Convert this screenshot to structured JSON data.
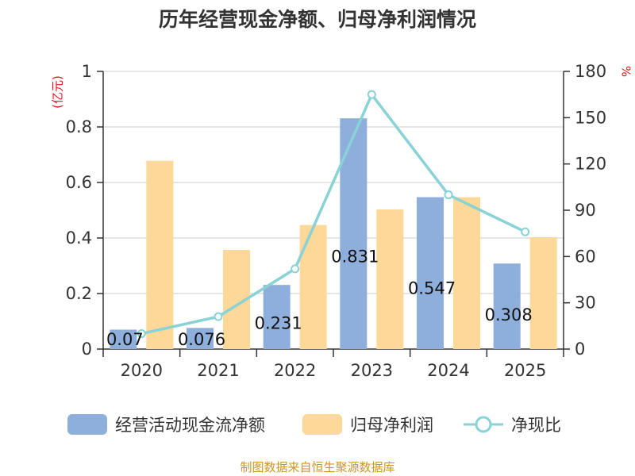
{
  "chart_data": {
    "type": "bar",
    "title": "历年经营现金净额、归母净利润情况",
    "categories": [
      "2020",
      "2021",
      "2022",
      "2023",
      "2024",
      "2025"
    ],
    "series": [
      {
        "name": "经营活动现金流净额",
        "type": "bar",
        "axis": "left",
        "color": "#8eaedc",
        "values": [
          0.07,
          0.076,
          0.231,
          0.831,
          0.547,
          0.308
        ],
        "labels": [
          "0.07",
          "0.076",
          "0.231",
          "0.831",
          "0.547",
          "0.308"
        ]
      },
      {
        "name": "归母净利润",
        "type": "bar",
        "axis": "left",
        "color": "#fed899",
        "values": [
          0.678,
          0.357,
          0.447,
          0.503,
          0.547,
          0.403
        ]
      },
      {
        "name": "净现比",
        "type": "line",
        "axis": "right",
        "color": "#89d2d6",
        "values": [
          10,
          21,
          52,
          165,
          100,
          76
        ]
      }
    ],
    "y_left": {
      "label": "(亿元)",
      "ylim": [
        0,
        1
      ],
      "ticks": [
        "0",
        "0.2",
        "0.4",
        "0.6",
        "0.8",
        "1"
      ],
      "tick_values": [
        0,
        0.2,
        0.4,
        0.6,
        0.8,
        1
      ]
    },
    "y_right": {
      "label": "%",
      "ylim": [
        0,
        180
      ],
      "ticks": [
        "0",
        "30",
        "60",
        "90",
        "120",
        "150",
        "180"
      ],
      "tick_values": [
        0,
        30,
        60,
        90,
        120,
        150,
        180
      ]
    },
    "legend": {
      "position": "bottom",
      "items": [
        "经营活动现金流净额",
        "归母净利润",
        "净现比"
      ]
    },
    "grid": true
  },
  "source_text": "制图数据来自恒生聚源数据库",
  "colors": {
    "axis": "#333333",
    "grid": "#cccccc",
    "unit": "#e0161a",
    "source": "#c8952b"
  }
}
